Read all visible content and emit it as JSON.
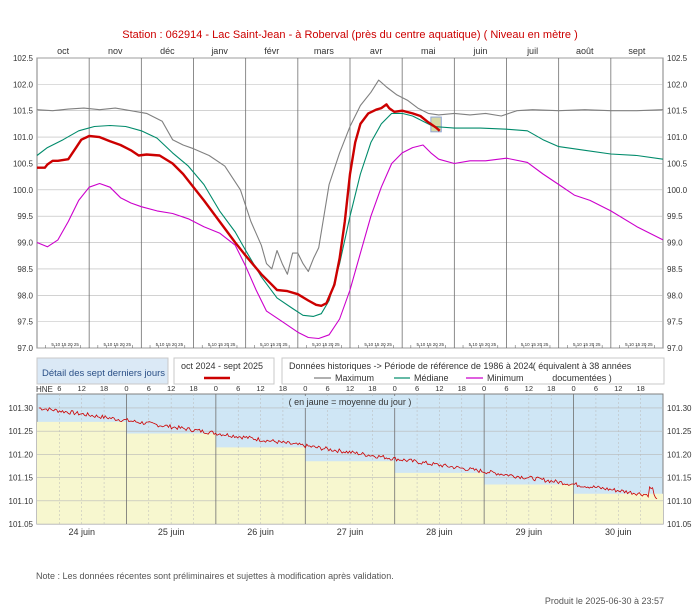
{
  "header": {
    "title": "Station : 062914       -   Lac Saint-Jean - à Roberval (près du centre aquatique)   ( Niveau en mètre )"
  },
  "colors": {
    "observed": "#cc0000",
    "maximum": "#808080",
    "median": "#008b6b",
    "minimum": "#cc00cc",
    "upper_panel_bg": "#cfe6f5",
    "lower_panel_bg": "#f7f7cf",
    "grid": "#a0a0a0"
  },
  "chart_data": [
    {
      "type": "line",
      "months": [
        "oct",
        "nov",
        "déc",
        "janv",
        "févr",
        "mars",
        "avr",
        "mai",
        "juin",
        "juil",
        "août",
        "sept"
      ],
      "ylim": [
        97.0,
        102.5
      ],
      "yticks": [
        "102.5",
        "102.0",
        "101.5",
        "101.0",
        "100.5",
        "100.0",
        "99.5",
        "99.0",
        "98.5",
        "98.0",
        "97.5",
        "97.0"
      ],
      "day_tick_label": "5 10 15 20 25",
      "series": [
        {
          "name": "oct 2024 - sept 2025",
          "key": "observed",
          "points": [
            [
              0,
              100.42
            ],
            [
              0.15,
              100.42
            ],
            [
              0.2,
              100.48
            ],
            [
              0.3,
              100.55
            ],
            [
              0.4,
              100.55
            ],
            [
              0.6,
              100.58
            ],
            [
              0.75,
              100.8
            ],
            [
              0.85,
              100.95
            ],
            [
              1.0,
              101.02
            ],
            [
              1.2,
              101.0
            ],
            [
              1.4,
              100.92
            ],
            [
              1.6,
              100.85
            ],
            [
              1.8,
              100.75
            ],
            [
              1.95,
              100.65
            ],
            [
              2.1,
              100.67
            ],
            [
              2.35,
              100.65
            ],
            [
              2.6,
              100.5
            ],
            [
              2.8,
              100.3
            ],
            [
              3.0,
              100.05
            ],
            [
              3.2,
              99.8
            ],
            [
              3.5,
              99.4
            ],
            [
              3.8,
              99.0
            ],
            [
              4.0,
              98.75
            ],
            [
              4.3,
              98.4
            ],
            [
              4.5,
              98.2
            ],
            [
              4.6,
              98.1
            ],
            [
              4.8,
              98.08
            ],
            [
              5.0,
              98.02
            ],
            [
              5.2,
              97.9
            ],
            [
              5.35,
              97.82
            ],
            [
              5.45,
              97.8
            ],
            [
              5.55,
              97.85
            ],
            [
              5.7,
              98.2
            ],
            [
              5.8,
              98.7
            ],
            [
              5.9,
              99.4
            ],
            [
              6.0,
              100.3
            ],
            [
              6.1,
              100.9
            ],
            [
              6.2,
              101.25
            ],
            [
              6.35,
              101.45
            ],
            [
              6.5,
              101.52
            ],
            [
              6.6,
              101.55
            ],
            [
              6.7,
              101.62
            ],
            [
              6.75,
              101.55
            ],
            [
              6.85,
              101.48
            ],
            [
              7.0,
              101.5
            ],
            [
              7.2,
              101.45
            ],
            [
              7.35,
              101.4
            ],
            [
              7.5,
              101.28
            ],
            [
              7.65,
              101.18
            ],
            [
              7.72,
              101.12
            ]
          ]
        },
        {
          "name": "Maximum",
          "key": "maximum",
          "points": [
            [
              0,
              101.52
            ],
            [
              0.3,
              101.5
            ],
            [
              0.6,
              101.53
            ],
            [
              0.9,
              101.55
            ],
            [
              1.2,
              101.52
            ],
            [
              1.5,
              101.55
            ],
            [
              1.8,
              101.5
            ],
            [
              2.1,
              101.45
            ],
            [
              2.4,
              101.3
            ],
            [
              2.6,
              100.95
            ],
            [
              2.8,
              100.85
            ],
            [
              3.0,
              100.78
            ],
            [
              3.3,
              100.65
            ],
            [
              3.6,
              100.45
            ],
            [
              3.9,
              100.0
            ],
            [
              4.1,
              99.4
            ],
            [
              4.3,
              98.95
            ],
            [
              4.4,
              98.6
            ],
            [
              4.5,
              98.5
            ],
            [
              4.6,
              98.85
            ],
            [
              4.7,
              98.6
            ],
            [
              4.8,
              98.4
            ],
            [
              4.9,
              98.8
            ],
            [
              5.0,
              98.8
            ],
            [
              5.1,
              98.6
            ],
            [
              5.2,
              98.45
            ],
            [
              5.3,
              98.7
            ],
            [
              5.4,
              98.9
            ],
            [
              5.5,
              99.5
            ],
            [
              5.6,
              100.1
            ],
            [
              5.8,
              100.7
            ],
            [
              6.0,
              101.2
            ],
            [
              6.2,
              101.6
            ],
            [
              6.4,
              101.85
            ],
            [
              6.55,
              102.08
            ],
            [
              6.7,
              101.95
            ],
            [
              6.9,
              101.8
            ],
            [
              7.1,
              101.7
            ],
            [
              7.3,
              101.55
            ],
            [
              7.5,
              101.45
            ],
            [
              7.7,
              101.42
            ],
            [
              8.0,
              101.45
            ],
            [
              8.3,
              101.42
            ],
            [
              8.6,
              101.45
            ],
            [
              8.9,
              101.4
            ],
            [
              9.2,
              101.5
            ],
            [
              9.5,
              101.52
            ],
            [
              10.0,
              101.5
            ],
            [
              10.5,
              101.52
            ],
            [
              11.0,
              101.5
            ],
            [
              11.5,
              101.5
            ],
            [
              12.0,
              101.52
            ]
          ]
        },
        {
          "name": "Médiane",
          "key": "median",
          "points": [
            [
              0,
              100.65
            ],
            [
              0.2,
              100.8
            ],
            [
              0.5,
              100.95
            ],
            [
              0.8,
              101.12
            ],
            [
              1.1,
              101.2
            ],
            [
              1.4,
              101.22
            ],
            [
              1.7,
              101.2
            ],
            [
              2.0,
              101.12
            ],
            [
              2.3,
              100.98
            ],
            [
              2.6,
              100.7
            ],
            [
              2.9,
              100.45
            ],
            [
              3.2,
              100.1
            ],
            [
              3.5,
              99.6
            ],
            [
              3.8,
              99.2
            ],
            [
              4.0,
              98.85
            ],
            [
              4.3,
              98.35
            ],
            [
              4.6,
              97.95
            ],
            [
              4.9,
              97.75
            ],
            [
              5.1,
              97.62
            ],
            [
              5.3,
              97.6
            ],
            [
              5.45,
              97.65
            ],
            [
              5.6,
              97.9
            ],
            [
              5.8,
              98.6
            ],
            [
              6.0,
              99.5
            ],
            [
              6.2,
              100.3
            ],
            [
              6.4,
              100.9
            ],
            [
              6.6,
              101.25
            ],
            [
              6.8,
              101.45
            ],
            [
              7.0,
              101.45
            ],
            [
              7.2,
              101.4
            ],
            [
              7.4,
              101.3
            ],
            [
              7.6,
              101.2
            ],
            [
              8.0,
              101.17
            ],
            [
              8.5,
              101.17
            ],
            [
              9.0,
              101.15
            ],
            [
              9.4,
              101.12
            ],
            [
              9.7,
              100.95
            ],
            [
              10.0,
              100.82
            ],
            [
              10.5,
              100.75
            ],
            [
              11.0,
              100.68
            ],
            [
              11.5,
              100.65
            ],
            [
              12.0,
              100.58
            ]
          ]
        },
        {
          "name": "Minimum",
          "key": "minimum",
          "points": [
            [
              0,
              99.0
            ],
            [
              0.2,
              98.92
            ],
            [
              0.4,
              99.05
            ],
            [
              0.6,
              99.4
            ],
            [
              0.8,
              99.8
            ],
            [
              1.0,
              100.05
            ],
            [
              1.2,
              100.12
            ],
            [
              1.4,
              100.05
            ],
            [
              1.6,
              99.85
            ],
            [
              1.8,
              99.75
            ],
            [
              2.0,
              99.68
            ],
            [
              2.3,
              99.6
            ],
            [
              2.6,
              99.55
            ],
            [
              2.9,
              99.45
            ],
            [
              3.2,
              99.3
            ],
            [
              3.5,
              99.18
            ],
            [
              3.8,
              98.95
            ],
            [
              4.0,
              98.55
            ],
            [
              4.2,
              98.1
            ],
            [
              4.4,
              97.7
            ],
            [
              4.7,
              97.5
            ],
            [
              5.0,
              97.3
            ],
            [
              5.2,
              97.2
            ],
            [
              5.4,
              97.18
            ],
            [
              5.6,
              97.25
            ],
            [
              5.8,
              97.55
            ],
            [
              6.0,
              98.1
            ],
            [
              6.2,
              98.8
            ],
            [
              6.4,
              99.5
            ],
            [
              6.6,
              100.05
            ],
            [
              6.8,
              100.5
            ],
            [
              7.0,
              100.7
            ],
            [
              7.2,
              100.8
            ],
            [
              7.4,
              100.85
            ],
            [
              7.55,
              100.7
            ],
            [
              7.7,
              100.58
            ],
            [
              8.0,
              100.5
            ],
            [
              8.3,
              100.55
            ],
            [
              8.6,
              100.55
            ],
            [
              9.0,
              100.6
            ],
            [
              9.4,
              100.52
            ],
            [
              9.7,
              100.3
            ],
            [
              10.0,
              100.1
            ],
            [
              10.3,
              99.9
            ],
            [
              10.6,
              99.8
            ],
            [
              11.0,
              99.6
            ],
            [
              11.5,
              99.3
            ],
            [
              12.0,
              99.05
            ]
          ]
        }
      ],
      "highlight_box": {
        "x0": 7.55,
        "x1": 7.75,
        "y0": 101.1,
        "y1": 101.38
      }
    },
    {
      "type": "line",
      "caption": "( en jaune = moyenne du jour )",
      "hne_label": "HNE",
      "hours": [
        "6",
        "12",
        "18",
        "0"
      ],
      "days": [
        "24 juin",
        "25 juin",
        "26 juin",
        "27 juin",
        "28 juin",
        "29 juin",
        "30 juin"
      ],
      "ylim": [
        101.05,
        101.33
      ],
      "yticks": [
        "101.30",
        "101.25",
        "101.20",
        "101.15",
        "101.10",
        "101.05"
      ],
      "daily_means": [
        101.27,
        101.245,
        101.215,
        101.185,
        101.16,
        101.135,
        101.115
      ],
      "trend_start": 101.3,
      "trend_end": 101.11
    }
  ],
  "legend": {
    "detail_label": "Détail des sept derniers jours",
    "current_period": "oct 2024 - sept 2025",
    "history_label": "Données historiques -> Période de référence  de 1986 à 2024",
    "equiv_label": "( équivalent à 38 années documentées )",
    "maximum": "Maximum",
    "median": "Médiane",
    "minimum": "Minimum"
  },
  "footer": {
    "note": "Note : Les données récentes sont préliminaires et sujettes à modification après validation.",
    "produced": "Produit le 2025-06-30 à 23:57"
  }
}
